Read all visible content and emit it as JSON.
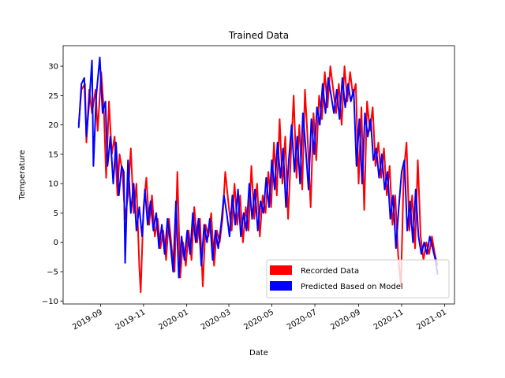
{
  "chart_data": {
    "type": "line",
    "title": "Trained Data",
    "xlabel": "Date",
    "ylabel": "Temperature",
    "xlim": [
      "2019-07-10",
      "2021-01-15"
    ],
    "ylim": [
      -10.5,
      33.5
    ],
    "x_ticks": [
      "2019-09-01",
      "2019-11-01",
      "2020-01-01",
      "2020-03-01",
      "2020-05-01",
      "2020-07-01",
      "2020-09-01",
      "2020-11-01",
      "2021-01-01"
    ],
    "x_tick_labels": [
      "2019-09",
      "2019-11",
      "2020-01",
      "2020-03",
      "2020-05",
      "2020-07",
      "2020-09",
      "2020-11",
      "2021-01"
    ],
    "y_ticks": [
      -10,
      -5,
      0,
      5,
      10,
      15,
      20,
      25,
      30
    ],
    "y_tick_labels": [
      "−10",
      "−5",
      "0",
      "5",
      "10",
      "15",
      "20",
      "25",
      "30"
    ],
    "legend_position": "lower-right",
    "grid": false,
    "series": [
      {
        "name": "Recorded Data",
        "color": "#ff0000",
        "points": [
          [
            "2019-08-01",
            20
          ],
          [
            "2019-08-05",
            26
          ],
          [
            "2019-08-10",
            27
          ],
          [
            "2019-08-12",
            17
          ],
          [
            "2019-08-16",
            26
          ],
          [
            "2019-08-20",
            22
          ],
          [
            "2019-08-25",
            26
          ],
          [
            "2019-08-28",
            19
          ],
          [
            "2019-09-02",
            29
          ],
          [
            "2019-09-06",
            22
          ],
          [
            "2019-09-09",
            11
          ],
          [
            "2019-09-13",
            24
          ],
          [
            "2019-09-17",
            15
          ],
          [
            "2019-09-21",
            18
          ],
          [
            "2019-09-25",
            8
          ],
          [
            "2019-09-28",
            15
          ],
          [
            "2019-10-02",
            12
          ],
          [
            "2019-10-06",
            4
          ],
          [
            "2019-10-10",
            8
          ],
          [
            "2019-10-14",
            16
          ],
          [
            "2019-10-18",
            5
          ],
          [
            "2019-10-22",
            10
          ],
          [
            "2019-10-26",
            -4
          ],
          [
            "2019-10-28",
            -8.5
          ],
          [
            "2019-11-01",
            6
          ],
          [
            "2019-11-05",
            11
          ],
          [
            "2019-11-09",
            3
          ],
          [
            "2019-11-13",
            8
          ],
          [
            "2019-11-17",
            1
          ],
          [
            "2019-11-21",
            4
          ],
          [
            "2019-11-25",
            -1
          ],
          [
            "2019-11-29",
            2
          ],
          [
            "2019-12-03",
            -3
          ],
          [
            "2019-12-07",
            4
          ],
          [
            "2019-12-11",
            -1
          ],
          [
            "2019-12-15",
            -5
          ],
          [
            "2019-12-19",
            12
          ],
          [
            "2019-12-23",
            -6
          ],
          [
            "2019-12-27",
            0
          ],
          [
            "2019-12-31",
            -4
          ],
          [
            "2020-01-04",
            2
          ],
          [
            "2020-01-08",
            -3
          ],
          [
            "2020-01-12",
            6
          ],
          [
            "2020-01-16",
            0
          ],
          [
            "2020-01-20",
            4
          ],
          [
            "2020-01-24",
            -7.5
          ],
          [
            "2020-01-28",
            3
          ],
          [
            "2020-02-01",
            1
          ],
          [
            "2020-02-05",
            5
          ],
          [
            "2020-02-09",
            -4
          ],
          [
            "2020-02-13",
            2
          ],
          [
            "2020-02-17",
            0
          ],
          [
            "2020-02-21",
            4
          ],
          [
            "2020-02-25",
            12
          ],
          [
            "2020-03-01",
            6
          ],
          [
            "2020-03-05",
            2
          ],
          [
            "2020-03-09",
            10
          ],
          [
            "2020-03-13",
            3
          ],
          [
            "2020-03-17",
            8
          ],
          [
            "2020-03-21",
            0
          ],
          [
            "2020-03-25",
            6
          ],
          [
            "2020-03-29",
            2
          ],
          [
            "2020-04-02",
            13
          ],
          [
            "2020-04-06",
            4
          ],
          [
            "2020-04-10",
            10
          ],
          [
            "2020-04-14",
            1
          ],
          [
            "2020-04-18",
            8
          ],
          [
            "2020-04-22",
            5
          ],
          [
            "2020-04-26",
            12
          ],
          [
            "2020-04-30",
            6
          ],
          [
            "2020-05-04",
            17
          ],
          [
            "2020-05-08",
            8
          ],
          [
            "2020-05-12",
            21
          ],
          [
            "2020-05-16",
            10
          ],
          [
            "2020-05-20",
            18
          ],
          [
            "2020-05-24",
            4
          ],
          [
            "2020-05-28",
            15
          ],
          [
            "2020-06-01",
            25
          ],
          [
            "2020-06-05",
            11
          ],
          [
            "2020-06-09",
            20
          ],
          [
            "2020-06-13",
            9
          ],
          [
            "2020-06-17",
            26
          ],
          [
            "2020-06-21",
            17
          ],
          [
            "2020-06-25",
            6
          ],
          [
            "2020-06-29",
            22
          ],
          [
            "2020-07-03",
            14
          ],
          [
            "2020-07-07",
            25
          ],
          [
            "2020-07-11",
            21
          ],
          [
            "2020-07-15",
            29
          ],
          [
            "2020-07-19",
            23
          ],
          [
            "2020-07-23",
            30
          ],
          [
            "2020-07-27",
            26
          ],
          [
            "2020-07-31",
            22
          ],
          [
            "2020-08-04",
            27
          ],
          [
            "2020-08-08",
            20
          ],
          [
            "2020-08-12",
            30
          ],
          [
            "2020-08-16",
            24
          ],
          [
            "2020-08-20",
            29
          ],
          [
            "2020-08-24",
            25
          ],
          [
            "2020-08-28",
            27
          ],
          [
            "2020-09-01",
            10
          ],
          [
            "2020-09-05",
            23
          ],
          [
            "2020-09-09",
            5.5
          ],
          [
            "2020-09-13",
            24
          ],
          [
            "2020-09-17",
            19
          ],
          [
            "2020-09-21",
            23
          ],
          [
            "2020-09-25",
            13
          ],
          [
            "2020-09-29",
            17
          ],
          [
            "2020-10-03",
            11
          ],
          [
            "2020-10-07",
            16
          ],
          [
            "2020-10-11",
            8
          ],
          [
            "2020-10-15",
            13
          ],
          [
            "2020-10-19",
            3
          ],
          [
            "2020-10-23",
            8
          ],
          [
            "2020-10-27",
            -2
          ],
          [
            "2020-10-31",
            -7.5
          ],
          [
            "2020-11-04",
            12
          ],
          [
            "2020-11-08",
            17
          ],
          [
            "2020-11-12",
            2
          ],
          [
            "2020-11-16",
            8
          ],
          [
            "2020-11-20",
            -1
          ],
          [
            "2020-11-24",
            14
          ],
          [
            "2020-11-28",
            1
          ],
          [
            "2020-12-02",
            -3
          ],
          [
            "2020-12-06",
            0
          ],
          [
            "2020-12-10",
            -2
          ],
          [
            "2020-12-14",
            1
          ],
          [
            "2020-12-18",
            -2
          ],
          [
            "2020-12-22",
            -4
          ]
        ]
      },
      {
        "name": "Predicted Based on Model",
        "color": "#0000ff",
        "points": [
          [
            "2019-08-01",
            19.5
          ],
          [
            "2019-08-05",
            27
          ],
          [
            "2019-08-09",
            28
          ],
          [
            "2019-08-12",
            18
          ],
          [
            "2019-08-16",
            24
          ],
          [
            "2019-08-20",
            31
          ],
          [
            "2019-08-22",
            13
          ],
          [
            "2019-08-26",
            25
          ],
          [
            "2019-08-31",
            31.5
          ],
          [
            "2019-09-04",
            22
          ],
          [
            "2019-09-08",
            24
          ],
          [
            "2019-09-11",
            13
          ],
          [
            "2019-09-15",
            18
          ],
          [
            "2019-09-19",
            10
          ],
          [
            "2019-09-23",
            17
          ],
          [
            "2019-09-27",
            8
          ],
          [
            "2019-10-01",
            13
          ],
          [
            "2019-10-04",
            12
          ],
          [
            "2019-10-06",
            -3.5
          ],
          [
            "2019-10-10",
            14
          ],
          [
            "2019-10-14",
            5
          ],
          [
            "2019-10-18",
            10
          ],
          [
            "2019-10-22",
            2
          ],
          [
            "2019-10-26",
            6
          ],
          [
            "2019-10-30",
            1
          ],
          [
            "2019-11-03",
            9
          ],
          [
            "2019-11-07",
            3
          ],
          [
            "2019-11-11",
            7
          ],
          [
            "2019-11-15",
            2
          ],
          [
            "2019-11-19",
            5
          ],
          [
            "2019-11-23",
            -1
          ],
          [
            "2019-11-27",
            3
          ],
          [
            "2019-12-01",
            -2
          ],
          [
            "2019-12-05",
            4
          ],
          [
            "2019-12-09",
            0
          ],
          [
            "2019-12-13",
            -5
          ],
          [
            "2019-12-17",
            7
          ],
          [
            "2019-12-21",
            -6
          ],
          [
            "2019-12-25",
            1
          ],
          [
            "2019-12-29",
            -3
          ],
          [
            "2020-01-02",
            2
          ],
          [
            "2020-01-06",
            -2
          ],
          [
            "2020-01-10",
            5
          ],
          [
            "2020-01-14",
            0
          ],
          [
            "2020-01-18",
            4
          ],
          [
            "2020-01-22",
            -4
          ],
          [
            "2020-01-26",
            3
          ],
          [
            "2020-01-30",
            0
          ],
          [
            "2020-02-03",
            4
          ],
          [
            "2020-02-07",
            -3
          ],
          [
            "2020-02-11",
            2
          ],
          [
            "2020-02-15",
            -1
          ],
          [
            "2020-02-19",
            3
          ],
          [
            "2020-02-23",
            8
          ],
          [
            "2020-02-27",
            5
          ],
          [
            "2020-03-02",
            1
          ],
          [
            "2020-03-06",
            8
          ],
          [
            "2020-03-10",
            3
          ],
          [
            "2020-03-14",
            9
          ],
          [
            "2020-03-18",
            1
          ],
          [
            "2020-03-22",
            5
          ],
          [
            "2020-03-26",
            2
          ],
          [
            "2020-03-30",
            10
          ],
          [
            "2020-04-03",
            4
          ],
          [
            "2020-04-07",
            9
          ],
          [
            "2020-04-11",
            2
          ],
          [
            "2020-04-15",
            7
          ],
          [
            "2020-04-19",
            5
          ],
          [
            "2020-04-23",
            11
          ],
          [
            "2020-04-27",
            6
          ],
          [
            "2020-05-01",
            14
          ],
          [
            "2020-05-05",
            9
          ],
          [
            "2020-05-09",
            17
          ],
          [
            "2020-05-13",
            11
          ],
          [
            "2020-05-17",
            16
          ],
          [
            "2020-05-21",
            6
          ],
          [
            "2020-05-25",
            14
          ],
          [
            "2020-05-29",
            20
          ],
          [
            "2020-06-02",
            12
          ],
          [
            "2020-06-06",
            18
          ],
          [
            "2020-06-10",
            10
          ],
          [
            "2020-06-14",
            22
          ],
          [
            "2020-06-18",
            16
          ],
          [
            "2020-06-22",
            9
          ],
          [
            "2020-06-26",
            21
          ],
          [
            "2020-06-30",
            15
          ],
          [
            "2020-07-04",
            23
          ],
          [
            "2020-07-08",
            20
          ],
          [
            "2020-07-12",
            27
          ],
          [
            "2020-07-16",
            22
          ],
          [
            "2020-07-20",
            28
          ],
          [
            "2020-07-24",
            25
          ],
          [
            "2020-07-28",
            22
          ],
          [
            "2020-08-01",
            26
          ],
          [
            "2020-08-05",
            21
          ],
          [
            "2020-08-09",
            28
          ],
          [
            "2020-08-13",
            23
          ],
          [
            "2020-08-17",
            27
          ],
          [
            "2020-08-21",
            24
          ],
          [
            "2020-08-25",
            26
          ],
          [
            "2020-08-29",
            13
          ],
          [
            "2020-09-02",
            21
          ],
          [
            "2020-09-06",
            10
          ],
          [
            "2020-09-10",
            22
          ],
          [
            "2020-09-14",
            18
          ],
          [
            "2020-09-18",
            21
          ],
          [
            "2020-09-22",
            14
          ],
          [
            "2020-09-26",
            16
          ],
          [
            "2020-09-30",
            11
          ],
          [
            "2020-10-04",
            15
          ],
          [
            "2020-10-08",
            9
          ],
          [
            "2020-10-12",
            12
          ],
          [
            "2020-10-16",
            4
          ],
          [
            "2020-10-20",
            8
          ],
          [
            "2020-10-24",
            -1
          ],
          [
            "2020-10-28",
            6
          ],
          [
            "2020-11-01",
            12
          ],
          [
            "2020-11-05",
            14
          ],
          [
            "2020-11-09",
            2
          ],
          [
            "2020-11-13",
            7
          ],
          [
            "2020-11-17",
            0
          ],
          [
            "2020-11-21",
            9
          ],
          [
            "2020-11-25",
            1
          ],
          [
            "2020-11-29",
            -2
          ],
          [
            "2020-12-03",
            0
          ],
          [
            "2020-12-07",
            -2
          ],
          [
            "2020-12-11",
            1
          ],
          [
            "2020-12-15",
            -1
          ],
          [
            "2020-12-19",
            -3
          ],
          [
            "2020-12-22",
            -5.5
          ]
        ]
      }
    ]
  }
}
